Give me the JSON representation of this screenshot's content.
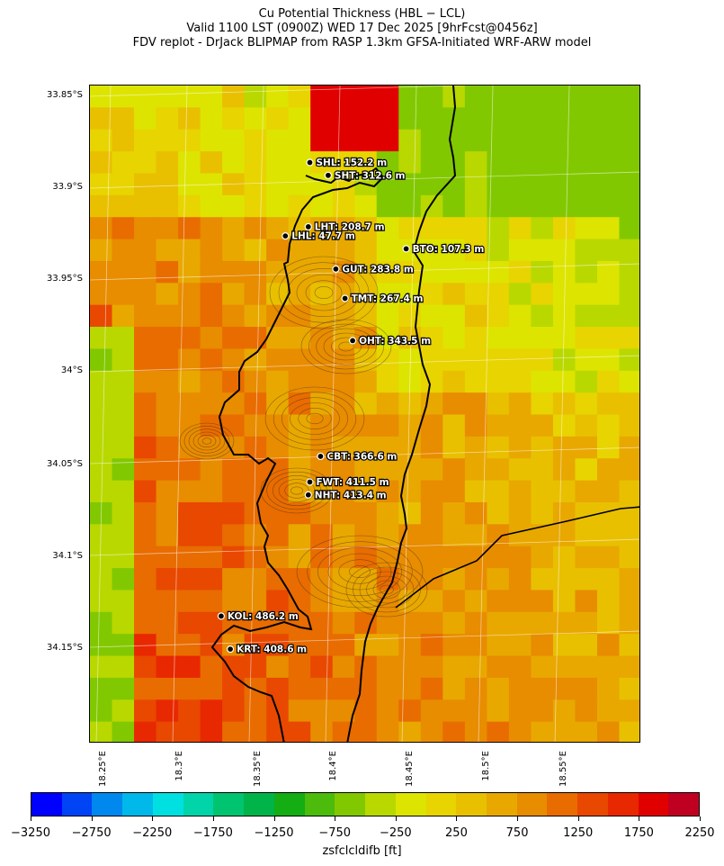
{
  "title_lines": [
    "Cu Potential Thickness (HBL − LCL)",
    "Valid 1100 LST (0900Z) WED 17 Dec 2025 [9hrFcst@0456z]",
    "FDV replot - DrJack BLIPMAP from RASP 1.3km GFSA-Initiated WRF-ARW model"
  ],
  "lat_labels": [
    "33.85°S",
    "33.9°S",
    "33.95°S",
    "34°S",
    "34.05°S",
    "34.1°S",
    "34.15°S"
  ],
  "lon_labels": [
    "18.25°E",
    "18.3°E",
    "18.35°E",
    "18.4°E",
    "18.45°E",
    "18.5°E",
    "18.55°E"
  ],
  "stations": [
    {
      "code": "SHL",
      "label": "SHL: 152.2 m",
      "lon": 18.385,
      "lat": -33.888
    },
    {
      "code": "SHT",
      "label": "SHT: 312.6 m",
      "lon": 18.397,
      "lat": -33.895
    },
    {
      "code": "LHT",
      "label": "LHT: 208.7 m",
      "lon": 18.384,
      "lat": -33.923
    },
    {
      "code": "LHL",
      "label": "LHL: 47.7 m",
      "lon": 18.369,
      "lat": -33.928
    },
    {
      "code": "BTO",
      "label": "BTO: 107.3 m",
      "lon": 18.448,
      "lat": -33.935
    },
    {
      "code": "GUT",
      "label": "GUT: 283.8 m",
      "lon": 18.402,
      "lat": -33.946
    },
    {
      "code": "TMT",
      "label": "TMT: 267.4 m",
      "lon": 18.408,
      "lat": -33.962
    },
    {
      "code": "OHT",
      "label": "OHT: 343.5 m",
      "lon": 18.413,
      "lat": -33.985
    },
    {
      "code": "CBT",
      "label": "CBT: 366.6 m",
      "lon": 18.392,
      "lat": -34.048
    },
    {
      "code": "FWT",
      "label": "FWT: 411.5 m",
      "lon": 18.385,
      "lat": -34.062
    },
    {
      "code": "NHT",
      "label": "NHT: 413.4 m",
      "lon": 18.384,
      "lat": -34.069
    },
    {
      "code": "KOL",
      "label": "KOL: 486.2 m",
      "lon": 18.327,
      "lat": -34.135
    },
    {
      "code": "KRT",
      "label": "KRT: 408.6 m",
      "lon": 18.333,
      "lat": -34.153
    }
  ],
  "colorbar": {
    "colors": [
      "#0000ff",
      "#0044f5",
      "#0088ee",
      "#00b8ea",
      "#00e0e0",
      "#00d4a8",
      "#00c470",
      "#00b44a",
      "#14ad14",
      "#4cbb0c",
      "#82c800",
      "#b8d800",
      "#dde400",
      "#e8d400",
      "#e8c000",
      "#e8a800",
      "#e88c00",
      "#e86c00",
      "#e84800",
      "#e82800",
      "#e00000",
      "#c00020"
    ],
    "ticks": [
      "−3250",
      "−2750",
      "−2250",
      "−1750",
      "−1250",
      "−750",
      "−250",
      "250",
      "750",
      "1250",
      "1750",
      "2250"
    ],
    "label": "zsfclcldifb [ft]"
  }
}
